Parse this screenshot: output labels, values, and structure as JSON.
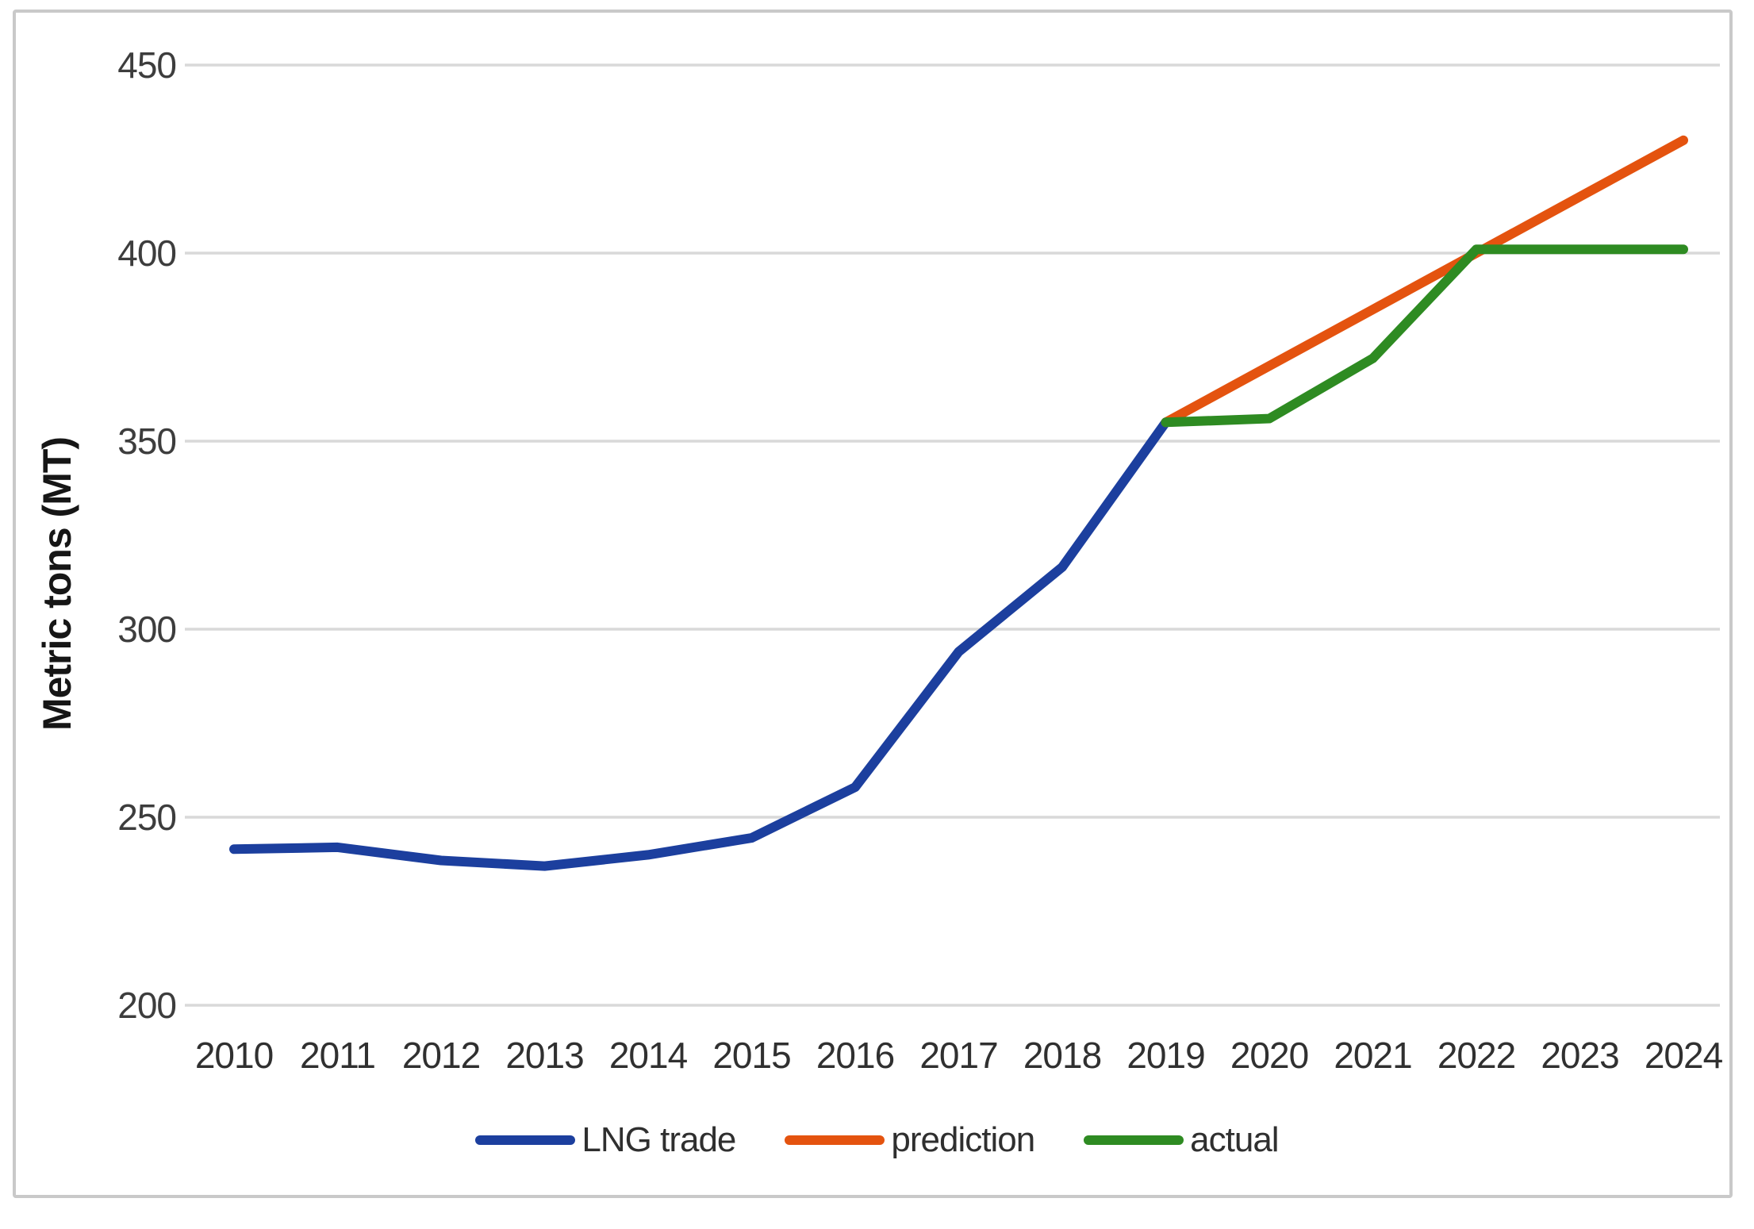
{
  "chart_data": {
    "type": "line",
    "title": "",
    "xlabel": "",
    "ylabel": "Metric tons (MT)",
    "ylim": [
      200,
      450
    ],
    "grid": "horizontal-only",
    "legend_position": "bottom-center",
    "y_ticks": [
      450,
      400,
      350,
      300,
      250,
      200
    ],
    "y_tick_labels": [
      "450",
      "400",
      "350",
      "300",
      "250",
      "200"
    ],
    "x_tick_labels": [
      "2010",
      "2011",
      "2012",
      "2013",
      "2014",
      "2015",
      "2016",
      "2017",
      "2018",
      "2019",
      "2020",
      "2021",
      "2022",
      "2023",
      "2024"
    ],
    "series": [
      {
        "name": "LNG trade",
        "color": "#1c3f9e",
        "x": [
          2010,
          2011,
          2012,
          2013,
          2014,
          2015,
          2016,
          2017,
          2018,
          2019
        ],
        "values": [
          241.5,
          242,
          238.5,
          237,
          240,
          244.5,
          258,
          294,
          316.5,
          355
        ]
      },
      {
        "name": "prediction",
        "color": "#e4530f",
        "x": [
          2019,
          2020,
          2021,
          2022,
          2023,
          2024
        ],
        "values": [
          355,
          370,
          385,
          400,
          415,
          430
        ]
      },
      {
        "name": "actual",
        "color": "#2e8b22",
        "x": [
          2019,
          2020,
          2021,
          2022,
          2023,
          2024
        ],
        "values": [
          355,
          356,
          372,
          401,
          401,
          401
        ]
      }
    ]
  },
  "colors": {
    "gridline": "#d9d9d9",
    "frame_border": "#c9c9c9",
    "tick_text": "#3d3d3d",
    "axis_title_text": "#161616"
  }
}
